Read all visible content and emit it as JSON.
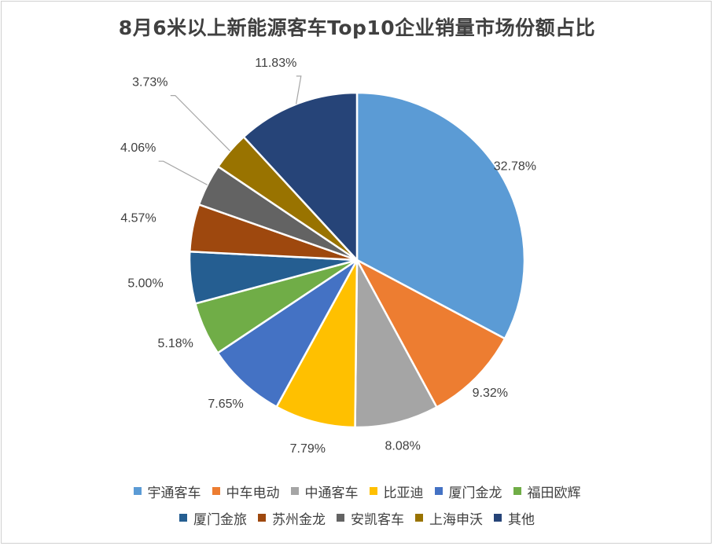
{
  "chart_data": {
    "type": "pie",
    "title": "8月6米以上新能源客车Top10企业销量市场份额占比",
    "categories": [
      "宇通客车",
      "中车电动",
      "中通客车",
      "比亚迪",
      "厦门金龙",
      "福田欧辉",
      "厦门金旅",
      "苏州金龙",
      "安凯客车",
      "上海申沃",
      "其他"
    ],
    "values": [
      32.78,
      9.32,
      8.08,
      7.79,
      7.65,
      5.18,
      5.0,
      4.57,
      4.06,
      3.73,
      11.83
    ],
    "labels": [
      "32.78%",
      "9.32%",
      "8.08%",
      "7.79%",
      "7.65%",
      "5.18%",
      "5.00%",
      "4.57%",
      "4.06%",
      "3.73%",
      "11.83%"
    ],
    "colors": [
      "#5b9bd5",
      "#ed7d31",
      "#a5a5a5",
      "#ffc000",
      "#4472c4",
      "#70ad47",
      "#255e91",
      "#9e480e",
      "#636363",
      "#997300",
      "#264478"
    ],
    "legend_position": "bottom",
    "legend_rows": [
      [
        0,
        1,
        2,
        3,
        4,
        5
      ],
      [
        6,
        7,
        8,
        9,
        10
      ]
    ]
  }
}
